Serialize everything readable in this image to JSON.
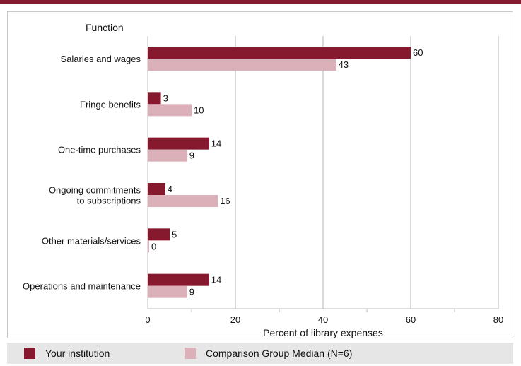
{
  "chart_data": {
    "type": "bar",
    "orientation": "horizontal",
    "y_axis_title": "Function",
    "xlabel": "Percent of library expenses",
    "xlim": [
      0,
      80
    ],
    "x_ticks": [
      0,
      20,
      40,
      60,
      80
    ],
    "grid": true,
    "legend_position": "bottom",
    "categories": [
      [
        "Salaries and wages"
      ],
      [
        "Fringe benefits"
      ],
      [
        "One-time purchases"
      ],
      [
        "Ongoing commitments",
        "to subscriptions"
      ],
      [
        "Other materials/services"
      ],
      [
        "Operations and maintenance"
      ]
    ],
    "series": [
      {
        "name": "Your institution",
        "color": "#86192e",
        "values": [
          60,
          3,
          14,
          4,
          5,
          14
        ]
      },
      {
        "name": "Comparison Group Median (N=6)",
        "color": "#dbb0b9",
        "values": [
          43,
          10,
          9,
          16,
          0,
          9
        ]
      }
    ]
  }
}
